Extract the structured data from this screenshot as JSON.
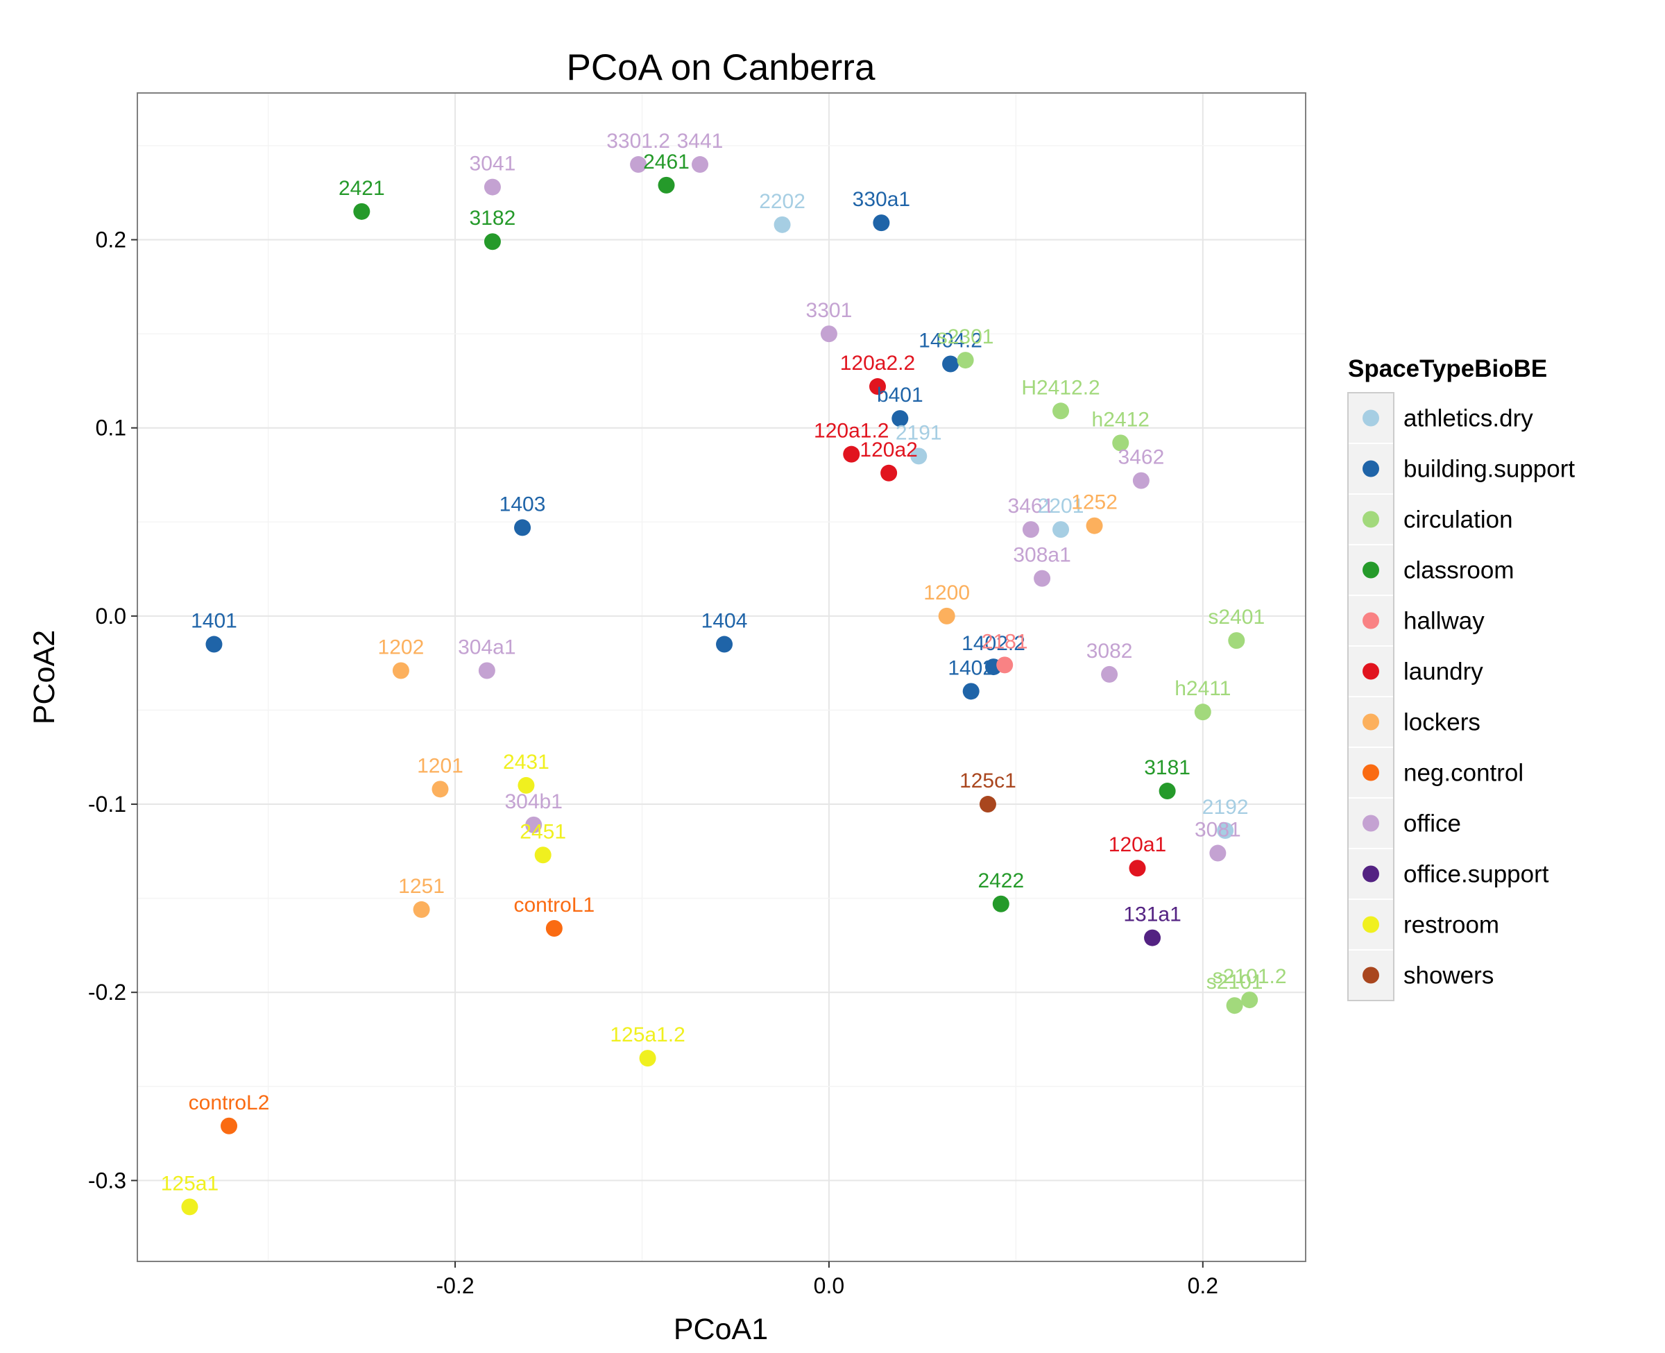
{
  "chart_data": {
    "type": "scatter",
    "title": "PCoA on Canberra",
    "xlabel": "PCoA1",
    "ylabel": "PCoA2",
    "xlim": [
      -0.37,
      0.255
    ],
    "ylim": [
      -0.343,
      0.278
    ],
    "x_ticks": [
      -0.2,
      0.0,
      0.2
    ],
    "x_tick_labels": [
      "-0.2",
      "0.0",
      "0.2"
    ],
    "y_ticks": [
      -0.3,
      -0.2,
      -0.1,
      0.0,
      0.1,
      0.2
    ],
    "y_tick_labels": [
      "-0.3",
      "-0.2",
      "-0.1",
      "0.0",
      "0.1",
      "0.2"
    ],
    "grid": true,
    "legend": {
      "title": "SpaceTypeBioBE",
      "position": "right",
      "entries": [
        {
          "name": "athletics.dry",
          "color": "#a6cee3"
        },
        {
          "name": "building.support",
          "color": "#1f64a8"
        },
        {
          "name": "circulation",
          "color": "#a2d97c"
        },
        {
          "name": "classroom",
          "color": "#259a2a"
        },
        {
          "name": "hallway",
          "color": "#f98284"
        },
        {
          "name": "laundry",
          "color": "#e1141f"
        },
        {
          "name": "lockers",
          "color": "#fcb05d"
        },
        {
          "name": "neg.control",
          "color": "#fa6b12"
        },
        {
          "name": "office",
          "color": "#c4a2d2"
        },
        {
          "name": "office.support",
          "color": "#532282"
        },
        {
          "name": "restroom",
          "color": "#f0f01f"
        },
        {
          "name": "showers",
          "color": "#a9461e"
        }
      ]
    },
    "points": [
      {
        "label": "3301.2",
        "x": -0.102,
        "y": 0.24,
        "group": "office"
      },
      {
        "label": "3441",
        "x": -0.069,
        "y": 0.24,
        "group": "office"
      },
      {
        "label": "2461",
        "x": -0.087,
        "y": 0.229,
        "group": "classroom"
      },
      {
        "label": "3041",
        "x": -0.18,
        "y": 0.228,
        "group": "office"
      },
      {
        "label": "2421",
        "x": -0.25,
        "y": 0.215,
        "group": "classroom"
      },
      {
        "label": "3182",
        "x": -0.18,
        "y": 0.199,
        "group": "classroom"
      },
      {
        "label": "2202",
        "x": -0.025,
        "y": 0.208,
        "group": "athletics.dry"
      },
      {
        "label": "330a1",
        "x": 0.028,
        "y": 0.209,
        "group": "building.support"
      },
      {
        "label": "3301",
        "x": 0.0,
        "y": 0.15,
        "group": "office"
      },
      {
        "label": "1404.2",
        "x": 0.065,
        "y": 0.134,
        "group": "building.support"
      },
      {
        "label": "s2301",
        "x": 0.073,
        "y": 0.136,
        "group": "circulation"
      },
      {
        "label": "120a2.2",
        "x": 0.026,
        "y": 0.122,
        "group": "laundry"
      },
      {
        "label": "b401",
        "x": 0.038,
        "y": 0.105,
        "group": "building.support"
      },
      {
        "label": "H2412.2",
        "x": 0.124,
        "y": 0.109,
        "group": "circulation"
      },
      {
        "label": "h2412",
        "x": 0.156,
        "y": 0.092,
        "group": "circulation"
      },
      {
        "label": "120a1.2",
        "x": 0.012,
        "y": 0.086,
        "group": "laundry"
      },
      {
        "label": "120a2",
        "x": 0.032,
        "y": 0.076,
        "group": "laundry"
      },
      {
        "label": "2191",
        "x": 0.048,
        "y": 0.085,
        "group": "athletics.dry"
      },
      {
        "label": "3462",
        "x": 0.167,
        "y": 0.072,
        "group": "office"
      },
      {
        "label": "1403",
        "x": -0.164,
        "y": 0.047,
        "group": "building.support"
      },
      {
        "label": "3461",
        "x": 0.108,
        "y": 0.046,
        "group": "office"
      },
      {
        "label": "2201",
        "x": 0.124,
        "y": 0.046,
        "group": "athletics.dry"
      },
      {
        "label": "1252",
        "x": 0.142,
        "y": 0.048,
        "group": "lockers"
      },
      {
        "label": "308a1",
        "x": 0.114,
        "y": 0.02,
        "group": "office"
      },
      {
        "label": "1200",
        "x": 0.063,
        "y": 0.0,
        "group": "lockers"
      },
      {
        "label": "s2401",
        "x": 0.218,
        "y": -0.013,
        "group": "circulation"
      },
      {
        "label": "1401",
        "x": -0.329,
        "y": -0.015,
        "group": "building.support"
      },
      {
        "label": "1404",
        "x": -0.056,
        "y": -0.015,
        "group": "building.support"
      },
      {
        "label": "1202",
        "x": -0.229,
        "y": -0.029,
        "group": "lockers"
      },
      {
        "label": "304a1",
        "x": -0.183,
        "y": -0.029,
        "group": "office"
      },
      {
        "label": "1402.2",
        "x": 0.088,
        "y": -0.027,
        "group": "building.support"
      },
      {
        "label": "2181",
        "x": 0.094,
        "y": -0.026,
        "group": "hallway"
      },
      {
        "label": "3082",
        "x": 0.15,
        "y": -0.031,
        "group": "office"
      },
      {
        "label": "1402",
        "x": 0.076,
        "y": -0.04,
        "group": "building.support"
      },
      {
        "label": "h2411",
        "x": 0.2,
        "y": -0.051,
        "group": "circulation"
      },
      {
        "label": "1201",
        "x": -0.208,
        "y": -0.092,
        "group": "lockers"
      },
      {
        "label": "2431",
        "x": -0.162,
        "y": -0.09,
        "group": "restroom"
      },
      {
        "label": "125c1",
        "x": 0.085,
        "y": -0.1,
        "group": "showers"
      },
      {
        "label": "3181",
        "x": 0.181,
        "y": -0.093,
        "group": "classroom"
      },
      {
        "label": "304b1",
        "x": -0.158,
        "y": -0.111,
        "group": "office"
      },
      {
        "label": "2451",
        "x": -0.153,
        "y": -0.127,
        "group": "restroom"
      },
      {
        "label": "2192",
        "x": 0.212,
        "y": -0.114,
        "group": "athletics.dry"
      },
      {
        "label": "3081",
        "x": 0.208,
        "y": -0.126,
        "group": "office"
      },
      {
        "label": "120a1",
        "x": 0.165,
        "y": -0.134,
        "group": "laundry"
      },
      {
        "label": "1251",
        "x": -0.218,
        "y": -0.156,
        "group": "lockers"
      },
      {
        "label": "2422",
        "x": 0.092,
        "y": -0.153,
        "group": "classroom"
      },
      {
        "label": "controL1",
        "x": -0.147,
        "y": -0.166,
        "group": "neg.control"
      },
      {
        "label": "131a1",
        "x": 0.173,
        "y": -0.171,
        "group": "office.support"
      },
      {
        "label": "s2101.2",
        "x": 0.225,
        "y": -0.204,
        "group": "circulation"
      },
      {
        "label": "s2101",
        "x": 0.217,
        "y": -0.207,
        "group": "circulation"
      },
      {
        "label": "125a1.2",
        "x": -0.097,
        "y": -0.235,
        "group": "restroom"
      },
      {
        "label": "controL2",
        "x": -0.321,
        "y": -0.271,
        "group": "neg.control"
      },
      {
        "label": "125a1",
        "x": -0.342,
        "y": -0.314,
        "group": "restroom"
      }
    ]
  }
}
